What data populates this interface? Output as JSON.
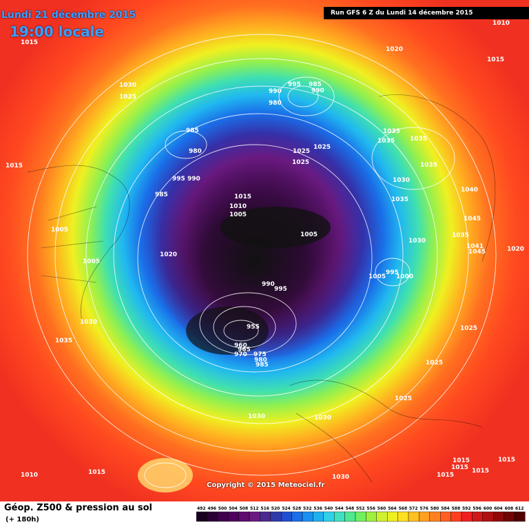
{
  "header": {
    "date": "Lundi 21 décembre 2015",
    "time": "19:00 locale",
    "run": "Run GFS 6 Z du Lundi 14 décembre 2015"
  },
  "copyright": "Copyright © 2015 Meteociel.fr",
  "footer": {
    "field": "Géop. Z500 & pression au sol",
    "lead": "(+ 180h)"
  },
  "scale": {
    "ticks": [
      "492",
      "496",
      "500",
      "504",
      "508",
      "512",
      "516",
      "520",
      "524",
      "528",
      "532",
      "536",
      "540",
      "544",
      "548",
      "552",
      "556",
      "560",
      "564",
      "568",
      "572",
      "576",
      "580",
      "584",
      "588",
      "592",
      "596",
      "600",
      "604",
      "608",
      "612"
    ],
    "colors": [
      "#1a0020",
      "#2b0035",
      "#3d004a",
      "#4f005f",
      "#5e0a70",
      "#6a1a80",
      "#4b2a8f",
      "#2f3aa8",
      "#1f4fd0",
      "#1a6ee8",
      "#1a90f0",
      "#20b0f0",
      "#30d0e8",
      "#40e0c0",
      "#50e890",
      "#70f060",
      "#a0f040",
      "#d0f030",
      "#f0f020",
      "#ffe020",
      "#ffc020",
      "#ffa020",
      "#ff8020",
      "#ff6020",
      "#ff4020",
      "#f02020",
      "#d01818",
      "#b01010",
      "#900808",
      "#700404",
      "#500000"
    ]
  },
  "pressure_labels": [
    "1015",
    "1030",
    "1025",
    "1020",
    "1010",
    "1015",
    "1015",
    "985",
    "980",
    "990",
    "995",
    "985",
    "990",
    "980",
    "995",
    "990",
    "985",
    "1010",
    "1015",
    "1005",
    "1035",
    "1035",
    "1035",
    "1035",
    "1025",
    "1025",
    "1025",
    "1030",
    "1035",
    "1040",
    "1045",
    "1035",
    "1030",
    "1020",
    "1005",
    "1005",
    "1020",
    "1005",
    "1000",
    "995",
    "990",
    "995",
    "1005",
    "1030",
    "1035",
    "955",
    "960",
    "965",
    "970",
    "975",
    "980",
    "985",
    "1025",
    "1025",
    "1030",
    "1030",
    "1025",
    "1010",
    "1015",
    "1030",
    "1015",
    "1015",
    "1015",
    "1015",
    "1015",
    "1045",
    "1041"
  ]
}
